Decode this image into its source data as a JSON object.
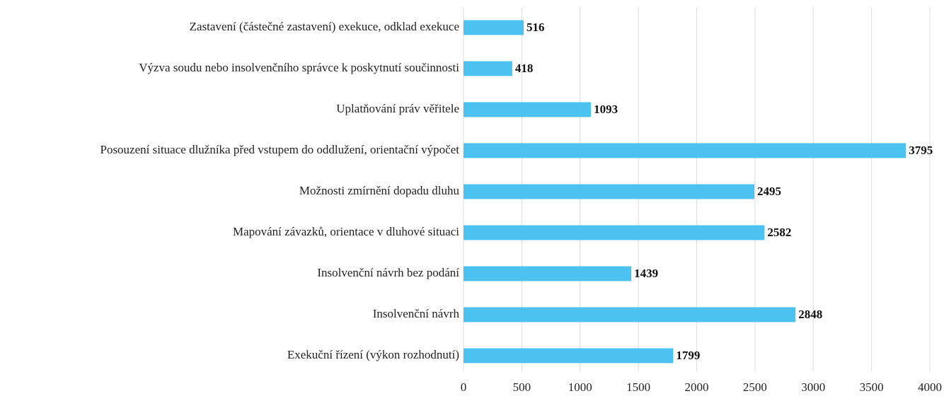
{
  "chart_data": {
    "type": "barh",
    "categories": [
      "Zastavení (částečné zastavení) exekuce, odklad exekuce",
      "Výzva soudu nebo insolvenčního správce k poskytnutí součinnosti",
      "Uplatňování práv věřitele",
      "Posouzení situace dlužníka před vstupem do oddlužení, orientační výpočet",
      "Možnosti zmírnění dopadu dluhu",
      "Mapování závazků, orientace v dluhové situaci",
      "Insolvenční návrh bez podání",
      "Insolvenční návrh",
      "Exekuční řízení (výkon rozhodnutí)"
    ],
    "values": [
      516,
      418,
      1093,
      3795,
      2495,
      2582,
      1439,
      2848,
      1799
    ],
    "color": "#4cc2f1",
    "xlim": [
      0,
      4000
    ],
    "xticks": [
      0,
      500,
      1000,
      1500,
      2000,
      2500,
      3000,
      3500,
      4000
    ],
    "grid": true
  }
}
